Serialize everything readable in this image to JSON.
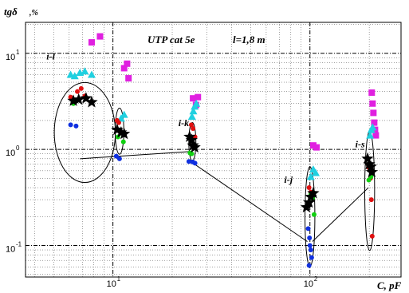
{
  "chart_data": {
    "type": "scatter",
    "title": "UTP cat 5e",
    "subtitle": "l=1,8 m",
    "ylabel_main": "tgδ",
    "ylabel_unit": ",%",
    "xlabel": "C, pF",
    "xscale": "log",
    "yscale": "log",
    "xlim": [
      3.6,
      290
    ],
    "ylim": [
      0.047,
      21
    ],
    "grid": true,
    "x_ticks": [
      {
        "value": 10,
        "base": "10",
        "exp": "1"
      },
      {
        "value": 100,
        "base": "10",
        "exp": "2"
      }
    ],
    "y_ticks": [
      {
        "value": 0.1,
        "base": "10",
        "exp": "-1"
      },
      {
        "value": 1,
        "base": "10",
        "exp": "0"
      },
      {
        "value": 10,
        "base": "10",
        "exp": "1"
      }
    ],
    "group_labels": [
      {
        "text": "i-l",
        "x": 4.6,
        "y": 8.6
      },
      {
        "text": "i-k",
        "x": 21.5,
        "y": 1.75
      },
      {
        "text": "i-j",
        "x": 74,
        "y": 0.45
      },
      {
        "text": "i-s",
        "x": 170,
        "y": 1.05
      }
    ],
    "ellipses": [
      {
        "cx": 7.2,
        "cy": 1.5,
        "rx_log": 0.155,
        "ry_log": 0.52
      },
      {
        "cx": 10.8,
        "cy": 1.55,
        "rx_log": 0.022,
        "ry_log": 0.24
      },
      {
        "cx": 25.3,
        "cy": 1.2,
        "rx_log": 0.018,
        "ry_log": 0.2
      },
      {
        "cx": 100,
        "cy": 0.2,
        "rx_log": 0.025,
        "ry_log": 0.52
      },
      {
        "cx": 201,
        "cy": 0.37,
        "rx_log": 0.025,
        "ry_log": 0.62
      }
    ],
    "connectors": [
      {
        "from": [
          6.8,
          0.8
        ],
        "to": [
          24.5,
          0.95
        ]
      },
      {
        "from": [
          25.5,
          0.72
        ],
        "to": [
          97,
          0.11
        ]
      },
      {
        "from": [
          103,
          0.11
        ],
        "to": [
          198,
          0.4
        ]
      }
    ],
    "series": [
      {
        "marker": "square",
        "color": "#e020e0",
        "points": [
          [
            7.8,
            13
          ],
          [
            8.6,
            15
          ],
          [
            11.4,
            7
          ],
          [
            11.8,
            7.8
          ],
          [
            12,
            5.5
          ],
          [
            25.5,
            3.4
          ],
          [
            26.4,
            2.9
          ],
          [
            27,
            3.5
          ],
          [
            104,
            1.1
          ],
          [
            108,
            1.05
          ],
          [
            206,
            3.9
          ],
          [
            208,
            3
          ],
          [
            210,
            2.4
          ],
          [
            212,
            1.9
          ],
          [
            214,
            1.6
          ],
          [
            216,
            1.4
          ]
        ]
      },
      {
        "marker": "triangle",
        "color": "#20d0e0",
        "points": [
          [
            6.1,
            6
          ],
          [
            6.4,
            5.8
          ],
          [
            6.8,
            6.3
          ],
          [
            7.2,
            6.5
          ],
          [
            7.8,
            6
          ],
          [
            11,
            2.1
          ],
          [
            11.4,
            2.3
          ],
          [
            25.2,
            2.2
          ],
          [
            25.6,
            2.5
          ],
          [
            26,
            2.8
          ],
          [
            26.5,
            3
          ],
          [
            101,
            0.52
          ],
          [
            104,
            0.62
          ],
          [
            107,
            0.57
          ],
          [
            202,
            1.4
          ],
          [
            205,
            1.6
          ],
          [
            208,
            1.7
          ]
        ]
      },
      {
        "marker": "circle",
        "color": "#e01010",
        "points": [
          [
            6.1,
            3.5
          ],
          [
            6.6,
            4
          ],
          [
            6.9,
            4.3
          ],
          [
            7.2,
            3.6
          ],
          [
            10.5,
            2
          ],
          [
            10.7,
            1.9
          ],
          [
            25,
            1.8
          ],
          [
            25.5,
            1.65
          ],
          [
            26.1,
            1.35
          ],
          [
            99,
            0.4
          ],
          [
            101,
            0.36
          ],
          [
            198,
            0.65
          ],
          [
            203,
            0.5
          ],
          [
            205,
            0.3
          ],
          [
            207,
            0.125
          ]
        ]
      },
      {
        "marker": "circle",
        "color": "#10d010",
        "points": [
          [
            6.3,
            3
          ],
          [
            6.7,
            3.3
          ],
          [
            10.6,
            1.35
          ],
          [
            11.3,
            1.2
          ],
          [
            24.6,
            0.92
          ],
          [
            25.1,
            0.9
          ],
          [
            101,
            0.34
          ],
          [
            103,
            0.31
          ],
          [
            105,
            0.21
          ],
          [
            199,
            0.48
          ],
          [
            204,
            0.52
          ]
        ]
      },
      {
        "marker": "circle",
        "color": "#1030e0",
        "points": [
          [
            6.1,
            1.8
          ],
          [
            6.5,
            1.75
          ],
          [
            10.4,
            0.85
          ],
          [
            10.8,
            0.8
          ],
          [
            24.3,
            0.75
          ],
          [
            25.4,
            0.74
          ],
          [
            26.1,
            0.72
          ],
          [
            98,
            0.15
          ],
          [
            99.5,
            0.12
          ],
          [
            100,
            0.1
          ],
          [
            101,
            0.09
          ],
          [
            102,
            0.075
          ],
          [
            99,
            0.062
          ]
        ]
      },
      {
        "marker": "star",
        "color": "#000000",
        "points": [
          [
            6.3,
            3.2
          ],
          [
            6.7,
            3.3
          ],
          [
            7.3,
            3.4
          ],
          [
            7.8,
            3.1
          ],
          [
            10.5,
            1.6
          ],
          [
            11,
            1.5
          ],
          [
            11.4,
            1.45
          ],
          [
            24.5,
            1.35
          ],
          [
            25.1,
            1.25
          ],
          [
            25.5,
            1.1
          ],
          [
            26,
            1.05
          ],
          [
            96,
            0.25
          ],
          [
            99,
            0.28
          ],
          [
            101,
            0.32
          ],
          [
            104,
            0.35
          ],
          [
            196,
            0.8
          ],
          [
            200,
            0.7
          ],
          [
            204,
            0.66
          ],
          [
            206,
            0.58
          ]
        ]
      }
    ]
  }
}
